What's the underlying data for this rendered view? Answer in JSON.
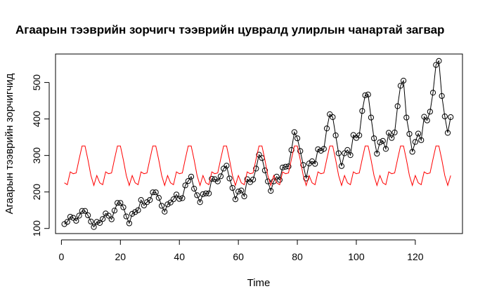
{
  "chart_data": {
    "type": "line",
    "title": "Агаарын тээврийн зорчигч тээврийн цувралд улирлын чанартай загвар",
    "xlabel": "Time",
    "ylabel": "Агаарын тээврийн зорчигчид",
    "xlim": [
      -2,
      136
    ],
    "ylim": [
      86,
      578
    ],
    "xticks": [
      0,
      20,
      40,
      60,
      80,
      100,
      120
    ],
    "yticks": [
      100,
      200,
      300,
      400,
      500
    ],
    "grid": false,
    "legend": "none",
    "series": [
      {
        "color": "#000000",
        "style": "line+points",
        "x_start": 1,
        "values": [
          112,
          118,
          132,
          129,
          121,
          135,
          148,
          148,
          136,
          119,
          104,
          118,
          115,
          126,
          141,
          135,
          125,
          149,
          170,
          170,
          158,
          133,
          114,
          140,
          145,
          150,
          178,
          163,
          172,
          178,
          199,
          199,
          184,
          162,
          146,
          166,
          171,
          180,
          193,
          181,
          183,
          218,
          230,
          242,
          209,
          191,
          172,
          194,
          196,
          196,
          236,
          235,
          229,
          243,
          264,
          272,
          237,
          211,
          180,
          201,
          204,
          188,
          235,
          227,
          234,
          264,
          302,
          293,
          259,
          229,
          203,
          229,
          242,
          233,
          267,
          269,
          270,
          315,
          364,
          347,
          312,
          274,
          237,
          278,
          284,
          277,
          317,
          313,
          318,
          374,
          413,
          405,
          355,
          306,
          271,
          306,
          315,
          301,
          356,
          348,
          355,
          422,
          465,
          467,
          404,
          347,
          305,
          336,
          340,
          318,
          362,
          348,
          363,
          435,
          491,
          505,
          404,
          359,
          310,
          337,
          360,
          342,
          406,
          396,
          420,
          472,
          548,
          559,
          463,
          407,
          362,
          405
        ]
      },
      {
        "color": "#ff0000",
        "style": "line",
        "x_start": 1,
        "values": [
          225,
          220,
          255,
          250,
          252,
          290,
          326,
          326,
          288,
          245,
          218,
          245,
          225,
          220,
          255,
          250,
          252,
          290,
          326,
          326,
          288,
          245,
          218,
          245,
          225,
          220,
          255,
          250,
          252,
          290,
          326,
          326,
          288,
          245,
          218,
          245,
          225,
          220,
          255,
          250,
          252,
          290,
          326,
          326,
          288,
          245,
          218,
          245,
          225,
          220,
          255,
          250,
          252,
          290,
          326,
          326,
          288,
          245,
          218,
          245,
          225,
          220,
          255,
          250,
          252,
          290,
          326,
          326,
          288,
          245,
          218,
          245,
          225,
          220,
          255,
          250,
          252,
          290,
          326,
          326,
          288,
          245,
          218,
          245,
          225,
          220,
          255,
          250,
          252,
          290,
          326,
          326,
          288,
          245,
          218,
          245,
          225,
          220,
          255,
          250,
          252,
          290,
          326,
          326,
          288,
          245,
          218,
          245,
          225,
          220,
          255,
          250,
          252,
          290,
          326,
          326,
          288,
          245,
          218,
          245,
          225,
          220,
          255,
          250,
          252,
          290,
          326,
          326,
          288,
          245,
          218,
          245
        ]
      }
    ]
  }
}
